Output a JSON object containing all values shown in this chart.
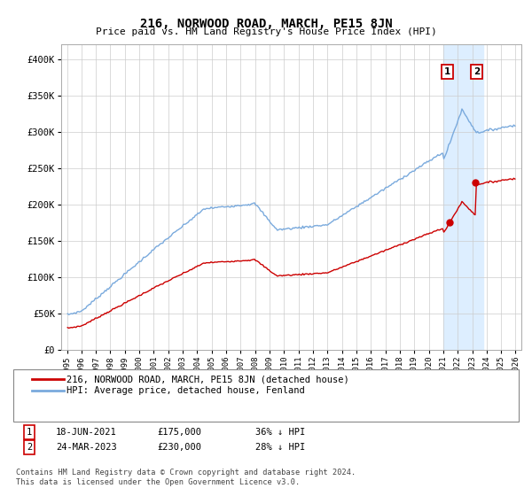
{
  "title": "216, NORWOOD ROAD, MARCH, PE15 8JN",
  "subtitle": "Price paid vs. HM Land Registry's House Price Index (HPI)",
  "legend_line1": "216, NORWOOD ROAD, MARCH, PE15 8JN (detached house)",
  "legend_line2": "HPI: Average price, detached house, Fenland",
  "footnote": "Contains HM Land Registry data © Crown copyright and database right 2024.\nThis data is licensed under the Open Government Licence v3.0.",
  "annotation1": {
    "label": "1",
    "date": "18-JUN-2021",
    "price": "£175,000",
    "pct": "36% ↓ HPI"
  },
  "annotation2": {
    "label": "2",
    "date": "24-MAR-2023",
    "price": "£230,000",
    "pct": "28% ↓ HPI"
  },
  "hpi_color": "#7aaadd",
  "price_color": "#cc0000",
  "highlight_color": "#ddeeff",
  "ylim": [
    0,
    420000
  ],
  "yticks": [
    0,
    50000,
    100000,
    150000,
    200000,
    250000,
    300000,
    350000,
    400000
  ],
  "ytick_labels": [
    "£0",
    "£50K",
    "£100K",
    "£150K",
    "£200K",
    "£250K",
    "£300K",
    "£350K",
    "£400K"
  ]
}
